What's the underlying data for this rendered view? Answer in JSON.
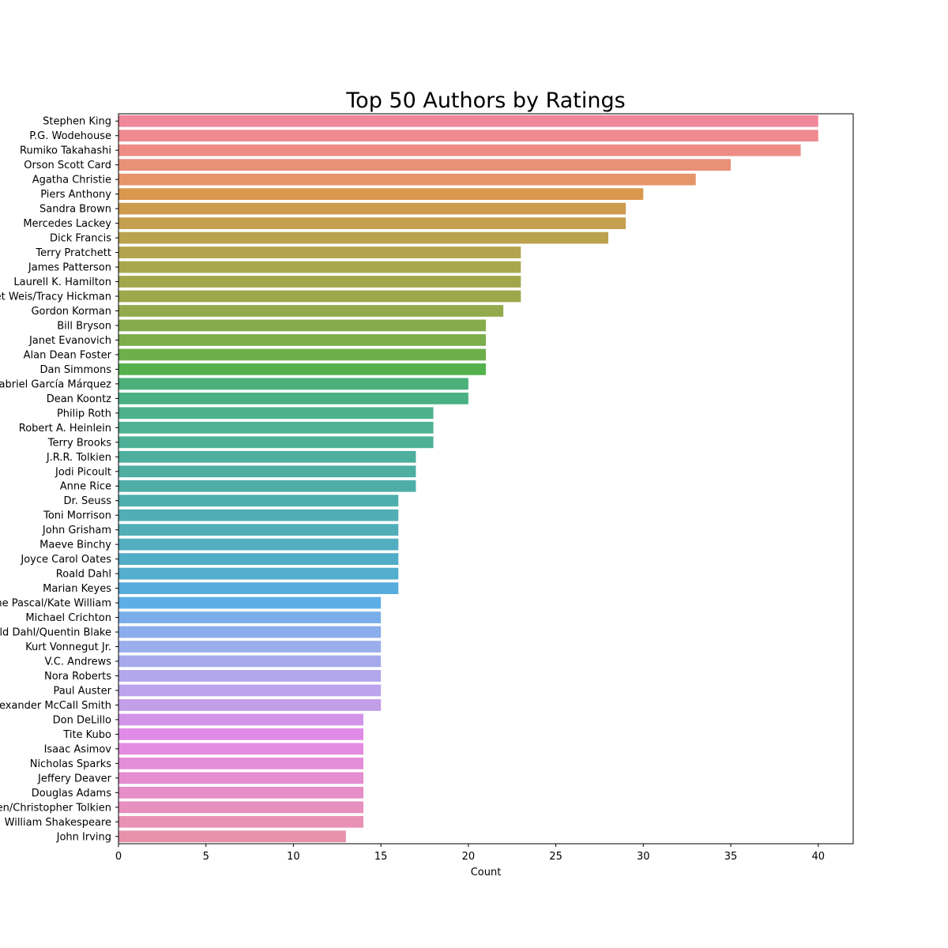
{
  "chart_data": {
    "type": "bar",
    "orientation": "horizontal",
    "title": "Top 50 Authors by Ratings",
    "xlabel": "Count",
    "ylabel": "",
    "xlim": [
      0,
      42
    ],
    "xticks": [
      0,
      5,
      10,
      15,
      20,
      25,
      30,
      35,
      40
    ],
    "grid": false,
    "categories": [
      "Stephen King",
      "P.G. Wodehouse",
      "Rumiko Takahashi",
      "Orson Scott Card",
      "Agatha Christie",
      "Piers Anthony",
      "Sandra Brown",
      "Mercedes Lackey",
      "Dick Francis",
      "Terry Pratchett",
      "James Patterson",
      "Laurell K. Hamilton",
      "Margaret Weis/Tracy Hickman",
      "Gordon Korman",
      "Bill Bryson",
      "Janet Evanovich",
      "Alan Dean Foster",
      "Dan Simmons",
      "Gabriel García Márquez",
      "Dean Koontz",
      "Philip Roth",
      "Robert A. Heinlein",
      "Terry Brooks",
      "J.R.R. Tolkien",
      "Jodi Picoult",
      "Anne Rice",
      "Dr. Seuss",
      "Toni Morrison",
      "John Grisham",
      "Maeve Binchy",
      "Joyce Carol Oates",
      "Roald Dahl",
      "Marian Keyes",
      "Francine Pascal/Kate William",
      "Michael Crichton",
      "Roald Dahl/Quentin Blake",
      "Kurt Vonnegut Jr.",
      "V.C. Andrews",
      "Nora Roberts",
      "Paul Auster",
      "Alexander McCall Smith",
      "Don DeLillo",
      "Tite Kubo",
      "Isaac Asimov",
      "Nicholas Sparks",
      "Jeffery Deaver",
      "Douglas Adams",
      "J.R.R. Tolkien/Christopher Tolkien",
      "William Shakespeare",
      "John Irving"
    ],
    "values": [
      40,
      40,
      39,
      35,
      33,
      30,
      29,
      29,
      28,
      23,
      23,
      23,
      23,
      22,
      21,
      21,
      21,
      21,
      20,
      20,
      18,
      18,
      18,
      17,
      17,
      17,
      16,
      16,
      16,
      16,
      16,
      16,
      16,
      15,
      15,
      15,
      15,
      15,
      15,
      15,
      15,
      14,
      14,
      14,
      14,
      14,
      14,
      14,
      14,
      13
    ],
    "colors": [
      "#f0879a",
      "#ef8a90",
      "#ec8c85",
      "#e99079",
      "#e6956a",
      "#d9984e",
      "#cd9b4e",
      "#c49f4e",
      "#bba24e",
      "#b2a44d",
      "#a9a74c",
      "#a3a74b",
      "#9ca84b",
      "#93aa4c",
      "#86ab4c",
      "#7cad4c",
      "#6daf4a",
      "#54b24c",
      "#4bb07a",
      "#4bb084",
      "#4db28b",
      "#4db192",
      "#4db097",
      "#4daf9c",
      "#4eaea2",
      "#4eaea7",
      "#4faeae",
      "#50aeb4",
      "#51aeb9",
      "#52aec0",
      "#52adc6",
      "#54aecd",
      "#55acdd",
      "#5baee6",
      "#7aaeea",
      "#8aaeeb",
      "#9aaeec",
      "#a6aaec",
      "#b2a6ec",
      "#bba4ec",
      "#c39ee9",
      "#d295e9",
      "#e08be8",
      "#e48de0",
      "#e48dd8",
      "#e58ed0",
      "#e68ec7",
      "#e78fbe",
      "#e890b5",
      "#e891aa"
    ]
  }
}
